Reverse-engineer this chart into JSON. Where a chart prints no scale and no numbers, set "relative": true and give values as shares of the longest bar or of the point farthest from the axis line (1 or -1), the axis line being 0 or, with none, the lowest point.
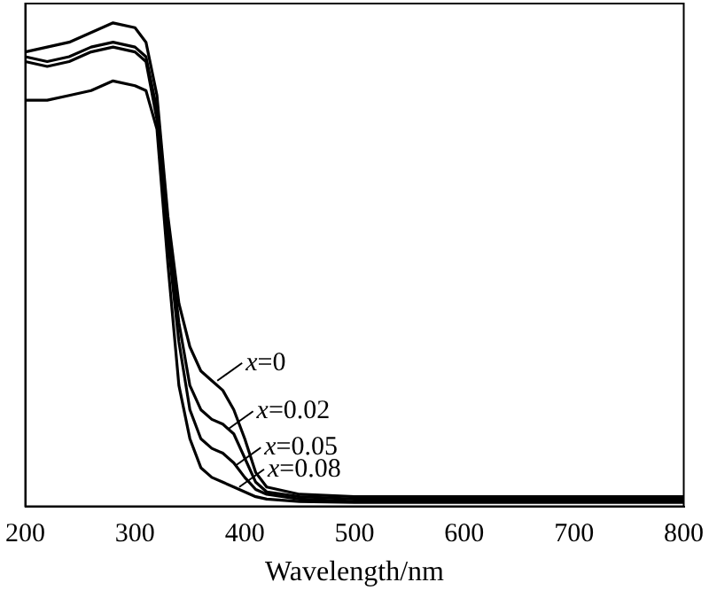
{
  "chart_data": {
    "type": "line",
    "relative": true,
    "xlabel": "Wavelength/nm",
    "xlim": [
      200,
      800
    ],
    "xticks": [
      200,
      300,
      400,
      500,
      600,
      700,
      800
    ],
    "grid": false,
    "legend": false,
    "marker": "none",
    "line_style": "solid",
    "x": [
      200,
      220,
      240,
      260,
      280,
      300,
      310,
      320,
      330,
      340,
      350,
      360,
      370,
      380,
      390,
      400,
      410,
      420,
      450,
      500,
      600,
      700,
      800
    ],
    "series": [
      {
        "color": "#000000",
        "values": [
          0.94,
          0.95,
          0.96,
          0.98,
          1.0,
          0.99,
          0.96,
          0.85,
          0.6,
          0.42,
          0.33,
          0.28,
          0.26,
          0.24,
          0.2,
          0.14,
          0.07,
          0.04,
          0.025,
          0.02,
          0.02,
          0.02,
          0.02
        ]
      },
      {
        "color": "#000000",
        "values": [
          0.93,
          0.92,
          0.93,
          0.95,
          0.96,
          0.95,
          0.93,
          0.82,
          0.57,
          0.38,
          0.25,
          0.2,
          0.18,
          0.17,
          0.15,
          0.1,
          0.05,
          0.03,
          0.02,
          0.015,
          0.015,
          0.015,
          0.015
        ]
      },
      {
        "color": "#000000",
        "values": [
          0.92,
          0.91,
          0.92,
          0.94,
          0.95,
          0.94,
          0.92,
          0.8,
          0.55,
          0.34,
          0.2,
          0.14,
          0.12,
          0.11,
          0.09,
          0.06,
          0.035,
          0.025,
          0.015,
          0.01,
          0.01,
          0.01,
          0.01
        ]
      },
      {
        "color": "#000000",
        "values": [
          0.84,
          0.84,
          0.85,
          0.86,
          0.88,
          0.87,
          0.86,
          0.78,
          0.5,
          0.25,
          0.14,
          0.08,
          0.06,
          0.05,
          0.04,
          0.03,
          0.02,
          0.015,
          0.01,
          0.008,
          0.008,
          0.008,
          0.008
        ]
      }
    ],
    "annotations": [
      {
        "text": "x=0",
        "x": 375,
        "y": 0.26
      },
      {
        "text": "x=0.02",
        "x": 385,
        "y": 0.16
      },
      {
        "text": "x=0.05",
        "x": 392,
        "y": 0.085
      },
      {
        "text": "x=0.08",
        "x": 395,
        "y": 0.04
      }
    ]
  }
}
